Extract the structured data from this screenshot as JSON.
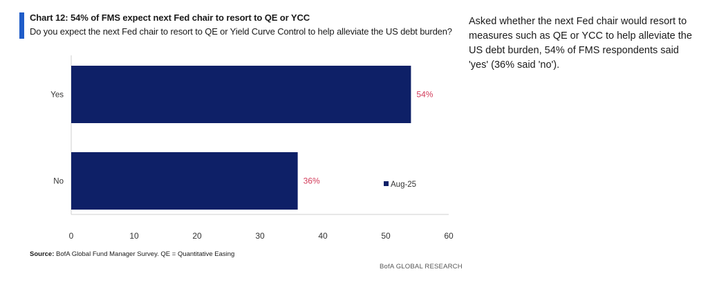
{
  "header": {
    "title": "Chart 12: 54% of FMS expect next Fed chair to resort to QE or YCC",
    "subtitle": "Do you expect the next Fed chair to resort to QE or Yield Curve Control to help alleviate the US debt burden?"
  },
  "commentary": "Asked whether the next Fed chair would resort to measures such as QE or YCC to help alleviate the US debt burden, 54% of FMS respondents said 'yes' (36% said 'no').",
  "footer": {
    "source_label": "Source:",
    "source_text": "BofA Global Fund Manager Survey. QE = Quantitative Easing",
    "brand": "BofA GLOBAL RESEARCH"
  },
  "colors": {
    "bar": "#0e2067",
    "data_label": "#d23b5a",
    "accent": "#1f5cc8",
    "axis": "#555555"
  },
  "chart_data": {
    "type": "bar",
    "orientation": "horizontal",
    "categories": [
      "Yes",
      "No"
    ],
    "series": [
      {
        "name": "Aug-25",
        "values": [
          54,
          36
        ]
      }
    ],
    "data_labels": [
      "54%",
      "36%"
    ],
    "xlim": [
      0,
      60
    ],
    "xticks": [
      0,
      10,
      20,
      30,
      40,
      50,
      60
    ],
    "legend": "right-middle",
    "grid": false
  }
}
